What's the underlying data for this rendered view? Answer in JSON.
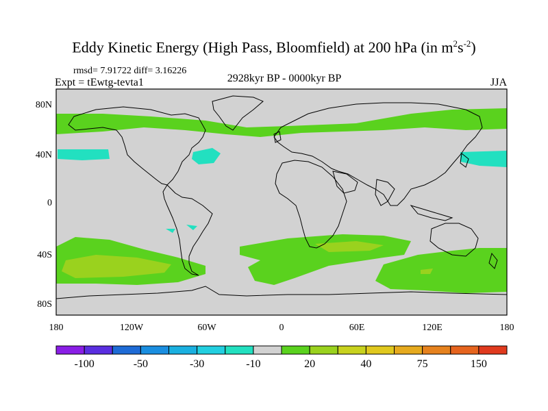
{
  "title": "Eddy Kinetic Energy (High Pass, Bloomfield) at 200 hPa (in m",
  "title_unit_sup1": "2",
  "title_unit_s": "s",
  "title_unit_sup2": "-2",
  "title_close": ")",
  "stats": "rmsd= 7.91722 diff= 3.16226",
  "experiment": "Expt = tEwtg-tevta1",
  "period": "2928kyr BP - 0000kyr BP",
  "season": "JJA",
  "lat_labels": [
    "80N",
    "40N",
    "0",
    "40S",
    "80S"
  ],
  "lon_labels": [
    "180",
    "120W",
    "60W",
    "0",
    "60E",
    "120E",
    "180"
  ],
  "colorbar": {
    "colors": [
      "#8a1ee6",
      "#5a2ee0",
      "#1e6bd6",
      "#1a8ee0",
      "#1ab0e0",
      "#22cfe0",
      "#22e0c0",
      "#d2d2d2",
      "#5ad21e",
      "#9ad21e",
      "#c8d21e",
      "#e0c81e",
      "#e6aa1e",
      "#e6821e",
      "#e6641e",
      "#e03a1e"
    ],
    "labels": [
      "-100",
      "-50",
      "-30",
      "-10",
      "20",
      "40",
      "75",
      "150"
    ],
    "label_after_box": [
      1,
      3,
      5,
      7,
      9,
      11,
      13,
      15
    ]
  },
  "fill_colors": {
    "neutral": "#d2d2d2",
    "green": "#5ad21e",
    "light_green": "#9ad21e",
    "yellow_green": "#c8d21e",
    "cyan": "#22e0c0"
  }
}
